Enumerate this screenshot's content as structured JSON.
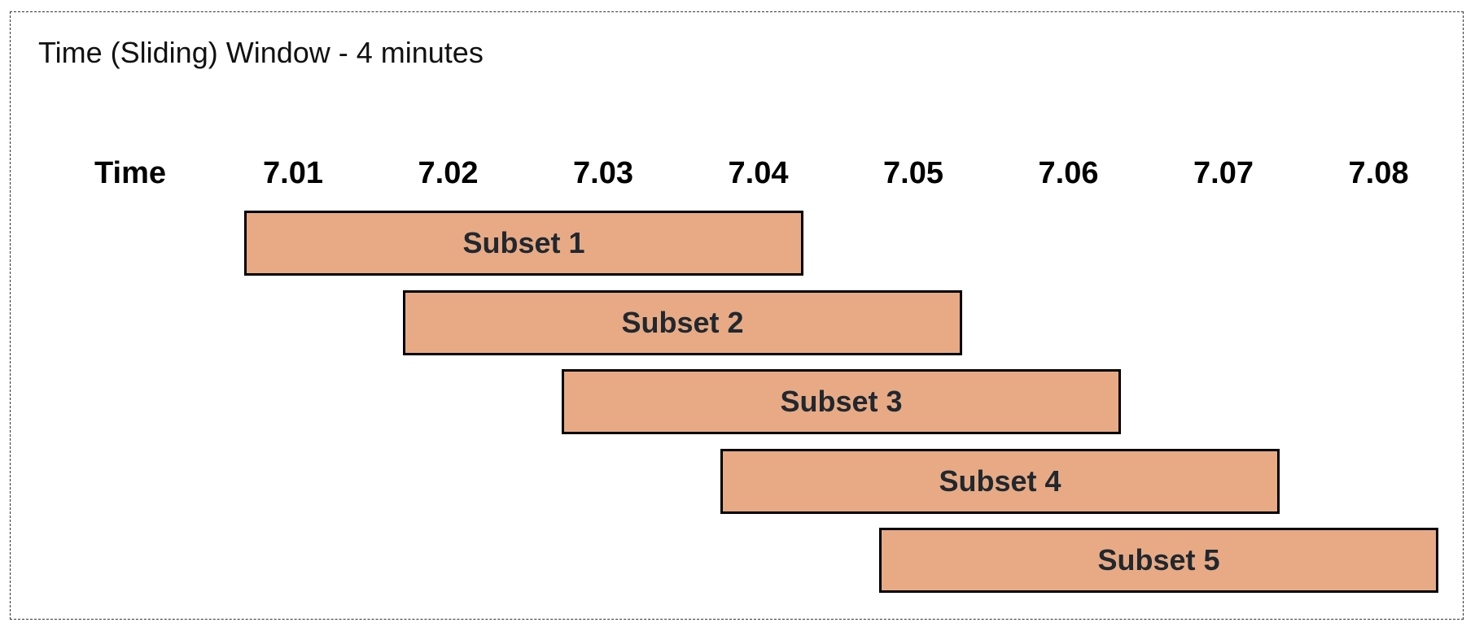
{
  "title": "Time (Sliding) Window - 4 minutes",
  "time_axis": {
    "label": "Time",
    "ticks": [
      "7.01",
      "7.02",
      "7.03",
      "7.04",
      "7.05",
      "7.06",
      "7.07",
      "7.08"
    ]
  },
  "colors": {
    "subset_fill": "#E8AA84",
    "subset_border": "#000000",
    "frame_border": "#333333"
  },
  "subsets": [
    {
      "label": "Subset 1",
      "start_tick": 0
    },
    {
      "label": "Subset 2",
      "start_tick": 1
    },
    {
      "label": "Subset 3",
      "start_tick": 2
    },
    {
      "label": "Subset 4",
      "start_tick": 3
    },
    {
      "label": "Subset 5",
      "start_tick": 4
    }
  ]
}
